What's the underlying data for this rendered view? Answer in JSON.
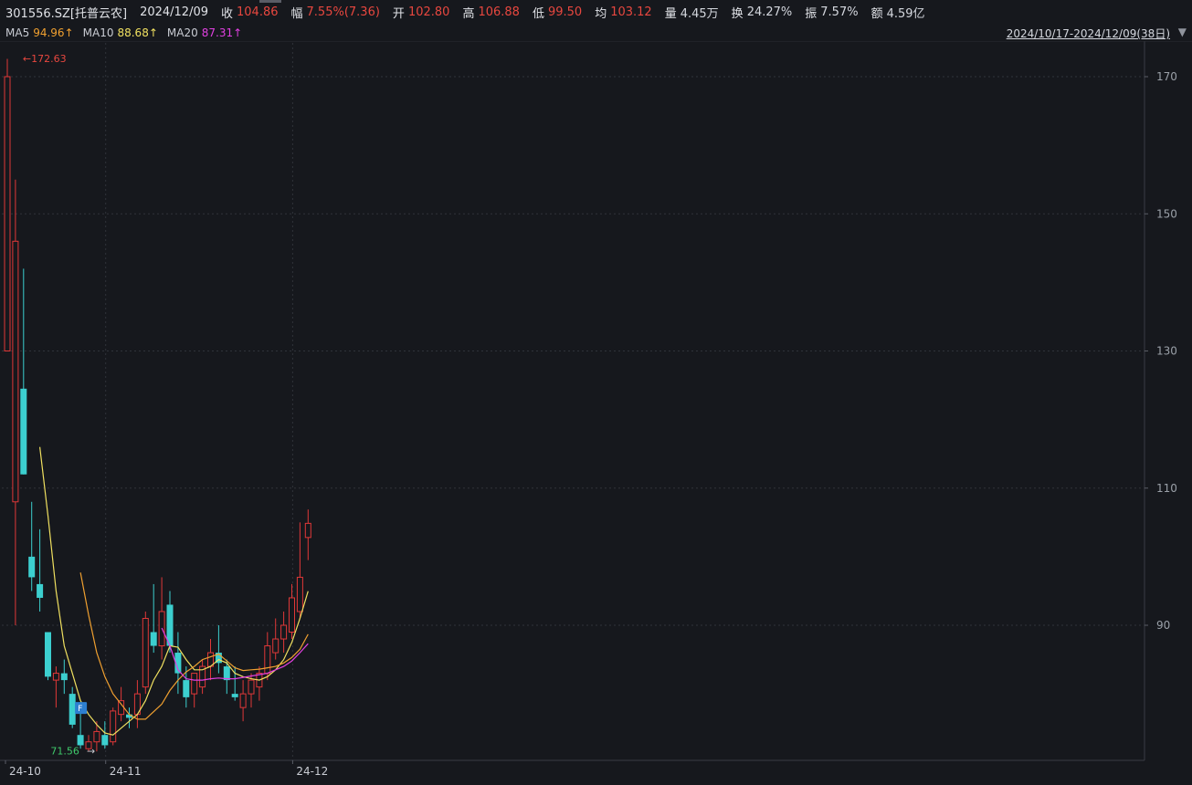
{
  "header": {
    "stock": "301556.SZ[托普云农]",
    "date": "2024/12/09",
    "close_label": "收",
    "close": "104.86",
    "change_label": "幅",
    "change": "7.55%(7.36)",
    "open_label": "开",
    "open": "102.80",
    "high_label": "高",
    "high": "106.88",
    "low_label": "低",
    "low": "99.50",
    "avg_label": "均",
    "avg": "103.12",
    "vol_label": "量",
    "vol": "4.45万",
    "turnover_label": "换",
    "turnover": "24.27%",
    "amp_label": "振",
    "amp": "7.57%",
    "amount_label": "额",
    "amount": "4.59亿"
  },
  "ma": {
    "ma5_label": "MA5",
    "ma5": "94.96↑",
    "ma10_label": "MA10",
    "ma10": "88.68↑",
    "ma20_label": "MA20",
    "ma20": "87.31↑"
  },
  "range": "2024/10/17-2024/12/09(38日)",
  "colors": {
    "up": "#e03838",
    "down": "#3ccfcf",
    "ma5": "#f0e060",
    "ma10": "#f0a030",
    "ma20": "#e040e0",
    "bg": "#16181d"
  },
  "chart_data": {
    "type": "candlestick",
    "ylim": [
      68,
      175
    ],
    "y_ticks": [
      90,
      110,
      130,
      150,
      170
    ],
    "x_labels": [
      "24-10",
      "24-11",
      "24-12"
    ],
    "x_label_index": [
      0,
      13,
      36
    ],
    "max_label": "172.63",
    "min_label": "71.56",
    "candles": [
      {
        "o": 130,
        "h": 172.6,
        "l": 130,
        "c": 170
      },
      {
        "o": 108,
        "h": 155,
        "l": 90,
        "c": 146
      },
      {
        "o": 124.5,
        "h": 142,
        "l": 112,
        "c": 112
      },
      {
        "o": 100,
        "h": 108,
        "l": 95,
        "c": 97
      },
      {
        "o": 96,
        "h": 104,
        "l": 92,
        "c": 94
      },
      {
        "o": 89,
        "h": 89,
        "l": 82,
        "c": 82.5
      },
      {
        "o": 82,
        "h": 84,
        "l": 78,
        "c": 83
      },
      {
        "o": 83,
        "h": 85,
        "l": 80,
        "c": 82
      },
      {
        "o": 80,
        "h": 81,
        "l": 75,
        "c": 75.5
      },
      {
        "o": 74,
        "h": 78,
        "l": 72,
        "c": 72.5
      },
      {
        "o": 72,
        "h": 74,
        "l": 71.6,
        "c": 73
      },
      {
        "o": 73,
        "h": 76,
        "l": 71.6,
        "c": 74.5
      },
      {
        "o": 74,
        "h": 76,
        "l": 72,
        "c": 72.5
      },
      {
        "o": 73,
        "h": 78,
        "l": 72.5,
        "c": 77.5
      },
      {
        "o": 77,
        "h": 81,
        "l": 76,
        "c": 79
      },
      {
        "o": 77,
        "h": 78,
        "l": 75,
        "c": 76.5
      },
      {
        "o": 77,
        "h": 82,
        "l": 75,
        "c": 80
      },
      {
        "o": 81,
        "h": 92,
        "l": 80,
        "c": 91
      },
      {
        "o": 89,
        "h": 96,
        "l": 86,
        "c": 87
      },
      {
        "o": 87,
        "h": 97,
        "l": 85,
        "c": 92
      },
      {
        "o": 93,
        "h": 95,
        "l": 86,
        "c": 87
      },
      {
        "o": 86,
        "h": 89,
        "l": 80,
        "c": 83
      },
      {
        "o": 82,
        "h": 84,
        "l": 78,
        "c": 79.5
      },
      {
        "o": 80,
        "h": 83,
        "l": 78,
        "c": 83
      },
      {
        "o": 81,
        "h": 85,
        "l": 80,
        "c": 84
      },
      {
        "o": 84,
        "h": 88,
        "l": 82,
        "c": 86
      },
      {
        "o": 86,
        "h": 90,
        "l": 83,
        "c": 84.5
      },
      {
        "o": 84,
        "h": 85,
        "l": 80,
        "c": 82
      },
      {
        "o": 80,
        "h": 84,
        "l": 79,
        "c": 79.5
      },
      {
        "o": 78,
        "h": 82,
        "l": 76,
        "c": 80
      },
      {
        "o": 80,
        "h": 83,
        "l": 78,
        "c": 82
      },
      {
        "o": 81,
        "h": 84,
        "l": 79,
        "c": 83
      },
      {
        "o": 83,
        "h": 89,
        "l": 82,
        "c": 87
      },
      {
        "o": 86,
        "h": 91,
        "l": 85,
        "c": 88
      },
      {
        "o": 88,
        "h": 92,
        "l": 86,
        "c": 90
      },
      {
        "o": 89,
        "h": 96,
        "l": 88,
        "c": 94
      },
      {
        "o": 92,
        "h": 105,
        "l": 91,
        "c": 97
      },
      {
        "o": 102.8,
        "h": 106.88,
        "l": 99.5,
        "c": 104.86
      }
    ],
    "ma5": [
      null,
      null,
      null,
      null,
      116,
      106,
      95,
      87,
      83,
      79,
      77,
      75.5,
      74.3,
      74,
      75,
      76,
      77,
      79,
      82,
      84,
      87,
      86.8,
      85,
      83.5,
      83.5,
      84,
      85,
      84.5,
      83,
      82.5,
      82.2,
      82,
      82.5,
      83.5,
      85,
      87.5,
      91,
      94.96
    ],
    "ma10": [
      null,
      null,
      null,
      null,
      null,
      null,
      null,
      null,
      null,
      97.7,
      91.5,
      86,
      82.5,
      80,
      78.5,
      77,
      76.3,
      76.3,
      77.4,
      78.5,
      80.5,
      82,
      83.2,
      84,
      85,
      85.4,
      85.8,
      84.8,
      83.8,
      83.4,
      83.5,
      83.6,
      83.8,
      84,
      84.5,
      85.3,
      86.5,
      88.68
    ],
    "ma20": [
      null,
      null,
      null,
      null,
      null,
      null,
      null,
      null,
      null,
      null,
      null,
      null,
      null,
      null,
      null,
      null,
      null,
      null,
      null,
      89.6,
      87,
      83.5,
      82.2,
      82,
      82,
      82.2,
      82.3,
      82.2,
      82.2,
      82.4,
      82.6,
      82.8,
      83,
      83.5,
      84,
      84.8,
      86,
      87.31
    ]
  }
}
